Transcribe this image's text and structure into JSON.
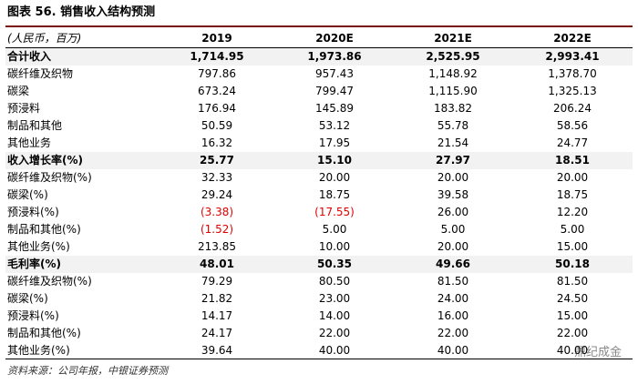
{
  "header": {
    "title": "图表 56. 销售收入结构预测"
  },
  "table": {
    "unit": "(人民币，百万)",
    "columns": [
      "2019",
      "2020E",
      "2021E",
      "2022E"
    ],
    "rows": [
      {
        "label": "合计收入",
        "bold": true,
        "values": [
          "1,714.95",
          "1,973.86",
          "2,525.95",
          "2,993.41"
        ]
      },
      {
        "label": "碳纤维及织物",
        "values": [
          "797.86",
          "957.43",
          "1,148.92",
          "1,378.70"
        ]
      },
      {
        "label": "碳梁",
        "values": [
          "673.24",
          "799.47",
          "1,115.90",
          "1,325.13"
        ]
      },
      {
        "label": "预浸料",
        "values": [
          "176.94",
          "145.89",
          "183.82",
          "206.24"
        ]
      },
      {
        "label": "制品和其他",
        "values": [
          "50.59",
          "53.12",
          "55.78",
          "58.56"
        ]
      },
      {
        "label": "其他业务",
        "values": [
          "16.32",
          "17.95",
          "21.54",
          "24.77"
        ]
      },
      {
        "label": "收入增长率(%)",
        "bold": true,
        "values": [
          "25.77",
          "15.10",
          "27.97",
          "18.51"
        ]
      },
      {
        "label": "碳纤维及织物(%)",
        "values": [
          "32.33",
          "20.00",
          "20.00",
          "20.00"
        ]
      },
      {
        "label": "碳梁(%)",
        "values": [
          "29.24",
          "18.75",
          "39.58",
          "18.75"
        ]
      },
      {
        "label": "预浸料(%)",
        "values": [
          "(3.38)",
          "(17.55)",
          "26.00",
          "12.20"
        ]
      },
      {
        "label": "制品和其他(%)",
        "values": [
          "(1.52)",
          "5.00",
          "5.00",
          "5.00"
        ]
      },
      {
        "label": "其他业务(%)",
        "values": [
          "213.85",
          "10.00",
          "20.00",
          "15.00"
        ]
      },
      {
        "label": "毛利率(%)",
        "bold": true,
        "values": [
          "48.01",
          "50.35",
          "49.66",
          "50.18"
        ]
      },
      {
        "label": "碳纤维及织物(%)",
        "values": [
          "79.29",
          "80.50",
          "81.50",
          "81.50"
        ]
      },
      {
        "label": "碳梁(%)",
        "values": [
          "21.82",
          "23.00",
          "24.00",
          "24.50"
        ]
      },
      {
        "label": "预浸料(%)",
        "values": [
          "14.17",
          "14.00",
          "16.00",
          "15.00"
        ]
      },
      {
        "label": "制品和其他(%)",
        "values": [
          "24.17",
          "22.00",
          "22.00",
          "22.00"
        ]
      },
      {
        "label": "其他业务(%)",
        "values": [
          "39.64",
          "40.00",
          "40.00",
          "40.00"
        ]
      }
    ]
  },
  "footer": {
    "source": "资料来源：公司年报，中银证券预测",
    "watermark": "鼎纪成金"
  }
}
